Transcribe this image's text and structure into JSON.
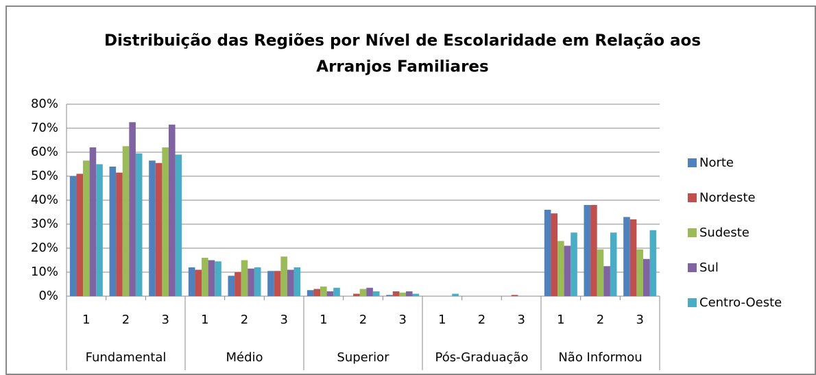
{
  "chart_data": {
    "type": "bar",
    "title": [
      "Distribuição das Regiões por Nível de Escolaridade em Relação aos",
      "Arranjos Familiares"
    ],
    "categories": [
      "1",
      "2",
      "3",
      "1",
      "2",
      "3",
      "1",
      "2",
      "3",
      "1",
      "2",
      "3",
      "1",
      "2",
      "3"
    ],
    "category_groups": [
      "Fundamental",
      "Médio",
      "Superior",
      "Pós-Graduação",
      "Não Informou"
    ],
    "series": [
      {
        "name": "Norte",
        "color": "#4f81bd",
        "values": [
          50,
          54,
          56.5,
          12,
          8.5,
          10.5,
          2.5,
          0,
          0.5,
          0,
          0,
          0,
          36,
          38,
          33
        ]
      },
      {
        "name": "Nordeste",
        "color": "#c0504d",
        "values": [
          51,
          51.5,
          55.5,
          11,
          10,
          10.5,
          3,
          1,
          2,
          0,
          0,
          0.5,
          34.5,
          38,
          32
        ]
      },
      {
        "name": "Sudeste",
        "color": "#9bbb59",
        "values": [
          56.5,
          62.5,
          62,
          16,
          15,
          16.5,
          4,
          3,
          1.5,
          0,
          0,
          0,
          23,
          19.5,
          19.5
        ]
      },
      {
        "name": "Sul",
        "color": "#8064a2",
        "values": [
          62,
          72.5,
          71.5,
          15,
          11.5,
          11,
          2,
          3.5,
          2,
          0,
          0,
          0,
          21,
          12.5,
          15.5
        ]
      },
      {
        "name": "Centro-Oeste",
        "color": "#4bacc6",
        "values": [
          55,
          59.5,
          59,
          14.5,
          12,
          12,
          3.5,
          2,
          1,
          1,
          0,
          0,
          26.5,
          26.5,
          27.5
        ]
      }
    ],
    "ylim": [
      0,
      80
    ],
    "yticks": [
      {
        "value": 0,
        "label": "0%"
      },
      {
        "value": 10,
        "label": "10%"
      },
      {
        "value": 20,
        "label": "20%"
      },
      {
        "value": 30,
        "label": "30%"
      },
      {
        "value": 40,
        "label": "40%"
      },
      {
        "value": 50,
        "label": "50%"
      },
      {
        "value": 60,
        "label": "60%"
      },
      {
        "value": 70,
        "label": "70%"
      },
      {
        "value": 80,
        "label": "80%"
      }
    ],
    "grid": true,
    "legend": "right"
  }
}
